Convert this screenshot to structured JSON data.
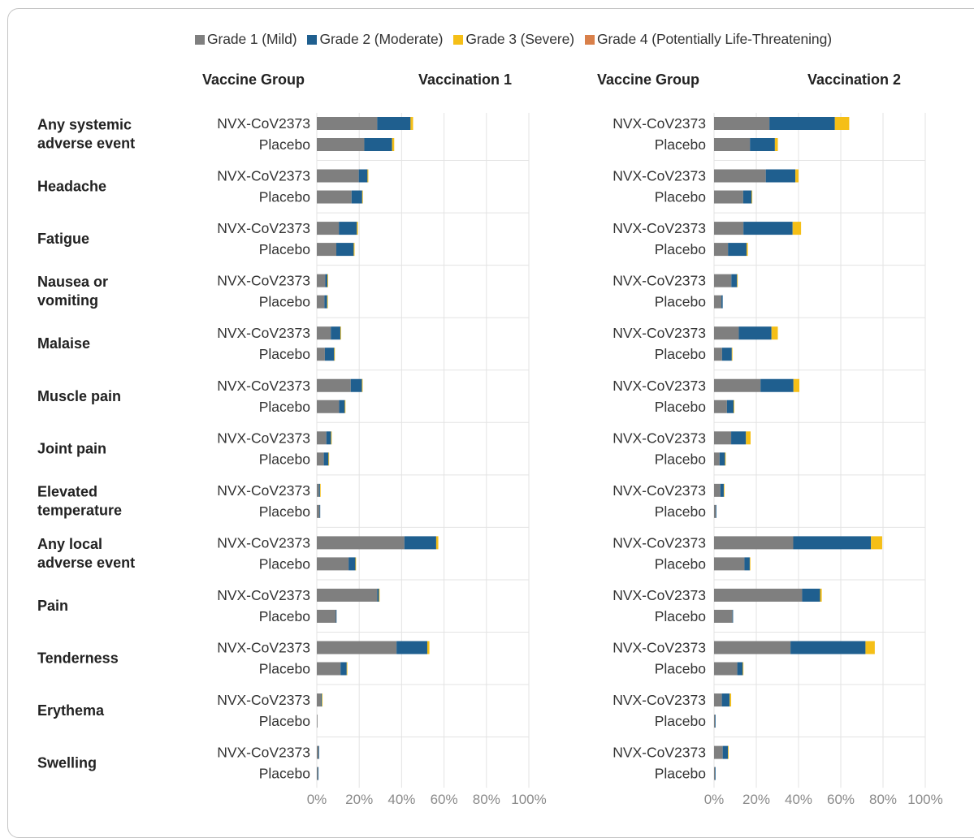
{
  "chart_data": {
    "type": "bar",
    "stacked": true,
    "orientation": "horizontal",
    "legend": {
      "position": "top",
      "entries": [
        {
          "name": "Grade 1 (Mild)",
          "color": "#7f7f7f"
        },
        {
          "name": "Grade 2 (Moderate)",
          "color": "#1f5f8f"
        },
        {
          "name": "Grade 3 (Severe)",
          "color": "#f5bf17"
        },
        {
          "name": "Grade 4 (Potentially Life-Threatening)",
          "color": "#d9804a"
        }
      ]
    },
    "headers": {
      "group_column": "Vaccine Group",
      "panels": [
        "Vaccination 1",
        "Vaccination 2"
      ]
    },
    "groups": [
      "NVX-CoV2373",
      "Placebo"
    ],
    "xlim": [
      0,
      100
    ],
    "x_ticks": [
      "0%",
      "20%",
      "40%",
      "60%",
      "80%",
      "100%"
    ],
    "grid": true,
    "categories": [
      "Any systemic adverse event",
      "Headache",
      "Fatigue",
      "Nausea or vomiting",
      "Malaise",
      "Muscle pain",
      "Joint pain",
      "Elevated temperature",
      "Any local adverse event",
      "Pain",
      "Tenderness",
      "Erythema",
      "Swelling"
    ],
    "category_display": [
      [
        "Any systemic",
        "adverse event"
      ],
      [
        "Headache"
      ],
      [
        "Fatigue"
      ],
      [
        "Nausea or",
        "vomiting"
      ],
      [
        "Malaise"
      ],
      [
        "Muscle pain"
      ],
      [
        "Joint pain"
      ],
      [
        "Elevated",
        "temperature"
      ],
      [
        "Any local",
        "adverse event"
      ],
      [
        "Pain"
      ],
      [
        "Tenderness"
      ],
      [
        "Erythema"
      ],
      [
        "Swelling"
      ]
    ],
    "panels": [
      {
        "title": "Vaccination 1",
        "data": [
          [
            [
              28.5,
              15.7,
              1.2,
              0
            ],
            [
              22.4,
              13.1,
              1.0,
              0
            ]
          ],
          [
            [
              19.8,
              4.1,
              0.4,
              0
            ],
            [
              16.4,
              5.0,
              0.3,
              0
            ]
          ],
          [
            [
              10.4,
              8.5,
              0.5,
              0
            ],
            [
              9.2,
              8.2,
              0.4,
              0
            ]
          ],
          [
            [
              4.0,
              1.0,
              0.1,
              0
            ],
            [
              3.6,
              1.3,
              0.1,
              0
            ]
          ],
          [
            [
              6.6,
              4.5,
              0.3,
              0
            ],
            [
              3.8,
              4.4,
              0.3,
              0
            ]
          ],
          [
            [
              16.0,
              5.3,
              0.2,
              0
            ],
            [
              10.5,
              2.7,
              0.2,
              0
            ]
          ],
          [
            [
              4.5,
              2.2,
              0.1,
              0
            ],
            [
              3.3,
              2.2,
              0.1,
              0
            ]
          ],
          [
            [
              1.0,
              0.5,
              0.1,
              0
            ],
            [
              1.3,
              0.2,
              0,
              0
            ]
          ],
          [
            [
              41.3,
              15.0,
              1.0,
              0
            ],
            [
              15.0,
              3.2,
              0.1,
              0
            ]
          ],
          [
            [
              28.5,
              0.8,
              0.1,
              0
            ],
            [
              9.0,
              0.1,
              0,
              0
            ]
          ],
          [
            [
              37.6,
              14.5,
              1.0,
              0
            ],
            [
              11.2,
              2.9,
              0.1,
              0
            ]
          ],
          [
            [
              2.0,
              0.4,
              0.1,
              0
            ],
            [
              0.3,
              0,
              0,
              0
            ]
          ],
          [
            [
              0.8,
              0.2,
              0,
              0
            ],
            [
              0.5,
              0.1,
              0,
              0
            ]
          ]
        ]
      },
      {
        "title": "Vaccination 2",
        "data": [
          [
            [
              26.2,
              31.0,
              6.8,
              0
            ],
            [
              17.0,
              11.8,
              1.4,
              0
            ]
          ],
          [
            [
              24.5,
              14.0,
              1.5,
              0
            ],
            [
              13.8,
              4.0,
              0.3,
              0
            ]
          ],
          [
            [
              13.9,
              23.3,
              4.0,
              0
            ],
            [
              6.6,
              8.8,
              0.6,
              0
            ]
          ],
          [
            [
              8.2,
              2.7,
              0.2,
              0
            ],
            [
              3.5,
              0.6,
              0,
              0
            ]
          ],
          [
            [
              11.7,
              15.5,
              3.0,
              0
            ],
            [
              3.8,
              4.6,
              0.2,
              0
            ]
          ],
          [
            [
              22.0,
              15.6,
              2.8,
              0
            ],
            [
              6.1,
              3.2,
              0.1,
              0
            ]
          ],
          [
            [
              8.1,
              7.0,
              2.2,
              0
            ],
            [
              2.6,
              2.6,
              0.1,
              0
            ]
          ],
          [
            [
              3.0,
              1.6,
              0.1,
              0
            ],
            [
              0.8,
              0.1,
              0,
              0
            ]
          ],
          [
            [
              37.5,
              36.8,
              5.3,
              0
            ],
            [
              14.4,
              2.5,
              0.1,
              0
            ]
          ],
          [
            [
              41.7,
              8.5,
              0.8,
              0
            ],
            [
              8.7,
              0.2,
              0,
              0
            ]
          ],
          [
            [
              36.2,
              35.5,
              4.4,
              0
            ],
            [
              11.0,
              2.6,
              0.1,
              0
            ]
          ],
          [
            [
              3.7,
              3.7,
              0.7,
              0
            ],
            [
              0.4,
              0.1,
              0,
              0
            ]
          ],
          [
            [
              4.1,
              2.5,
              0.2,
              0
            ],
            [
              0.4,
              0.2,
              0,
              0
            ]
          ]
        ]
      }
    ]
  }
}
